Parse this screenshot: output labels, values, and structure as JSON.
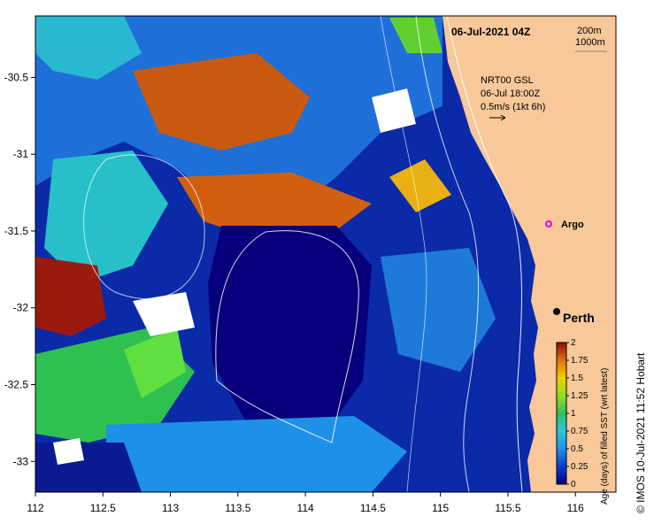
{
  "map": {
    "title": "06-Jul-2021 04Z",
    "bathymetry_legend": [
      "200m",
      "1000m"
    ],
    "current_info": [
      "NRT00 GSL",
      "06-Jul 18:00Z",
      "0.5m/s (1kt 6h)"
    ],
    "x_ticks": [
      "112",
      "112.5",
      "113",
      "113.5",
      "114",
      "114.5",
      "115",
      "115.5",
      "116"
    ],
    "y_ticks": [
      "-30.5",
      "-31",
      "-31.5",
      "-32",
      "-32.5",
      "-33"
    ],
    "lon_range": [
      112,
      116.3
    ],
    "lat_range": [
      -33.2,
      -30.1
    ],
    "land_color": "#f8c89a",
    "places": [
      {
        "name": "Perth",
        "marker": "black-dot"
      },
      {
        "name": "Argo",
        "marker": "magenta-circle"
      }
    ]
  },
  "colorbar": {
    "label": "Age (days) of filled SST (wrt latest)",
    "ticks": [
      "0",
      "0.25",
      "0.5",
      "0.75",
      "1",
      "1.25",
      "1.5",
      "1.75",
      "2"
    ],
    "range": [
      0,
      2
    ],
    "colors": [
      "#07007c",
      "#0a3cd0",
      "#1e90e8",
      "#28c8d8",
      "#30c060",
      "#90e020",
      "#f0d000",
      "#e07010",
      "#8c1008"
    ]
  },
  "credit": "© IMOS 10-Jul-2021 11:52 Hobart"
}
